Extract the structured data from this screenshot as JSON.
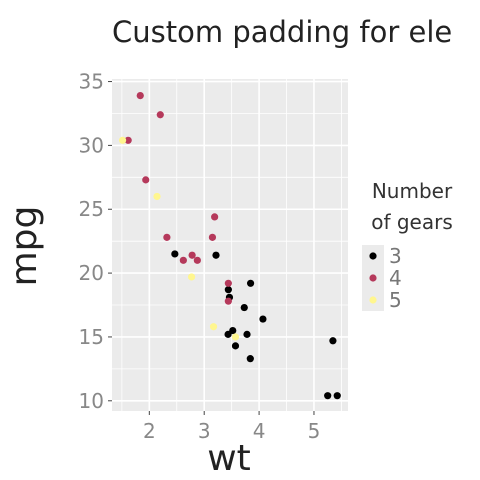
{
  "chart_data": {
    "type": "scatter",
    "title": "Custom padding for ele",
    "xlabel": "wt",
    "ylabel": "mpg",
    "xlim": [
      1.32,
      5.62
    ],
    "ylim": [
      9.2,
      35.2
    ],
    "x_ticks": [
      "2",
      "3",
      "4",
      "5"
    ],
    "y_ticks": [
      "10",
      "15",
      "20",
      "25",
      "30",
      "35"
    ],
    "grid": true,
    "legend": {
      "title_lines": [
        "Number",
        "of gears"
      ],
      "placement": "right"
    },
    "colors": {
      "panel_background": "#ebebeb",
      "gridline": "#ffffff"
    },
    "series": [
      {
        "name": "3",
        "color": "#000000",
        "points": [
          [
            3.215,
            21.4
          ],
          [
            3.44,
            18.7
          ],
          [
            3.46,
            18.1
          ],
          [
            3.57,
            14.3
          ],
          [
            4.07,
            16.4
          ],
          [
            3.73,
            17.3
          ],
          [
            3.78,
            15.2
          ],
          [
            5.25,
            10.4
          ],
          [
            5.424,
            10.4
          ],
          [
            5.345,
            14.7
          ],
          [
            2.465,
            21.5
          ],
          [
            3.52,
            15.5
          ],
          [
            3.435,
            15.2
          ],
          [
            3.84,
            13.3
          ],
          [
            3.845,
            19.2
          ]
        ]
      },
      {
        "name": "4",
        "color": "#b5395b",
        "points": [
          [
            2.62,
            21.0
          ],
          [
            2.875,
            21.0
          ],
          [
            2.32,
            22.8
          ],
          [
            3.19,
            24.4
          ],
          [
            3.15,
            22.8
          ],
          [
            3.44,
            19.2
          ],
          [
            3.44,
            17.8
          ],
          [
            2.2,
            32.4
          ],
          [
            1.615,
            30.4
          ],
          [
            1.835,
            33.9
          ],
          [
            1.935,
            27.3
          ],
          [
            2.78,
            21.4
          ]
        ]
      },
      {
        "name": "5",
        "color": "#fff68f",
        "points": [
          [
            2.14,
            26.0
          ],
          [
            1.513,
            30.4
          ],
          [
            3.17,
            15.8
          ],
          [
            2.77,
            19.7
          ],
          [
            3.57,
            15.0
          ]
        ]
      }
    ]
  }
}
